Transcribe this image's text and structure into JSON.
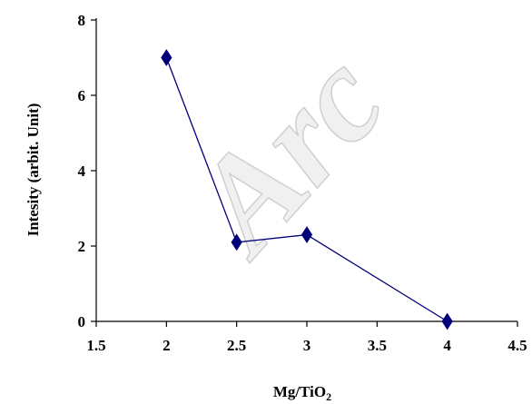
{
  "watermark": "Arc",
  "chart_data": {
    "type": "line",
    "title": "",
    "xlabel": "Mg/TiO",
    "xlabel_sub": "2",
    "ylabel": "Intesity (arbit. Unit)",
    "xlim": [
      1.5,
      4.5
    ],
    "ylim": [
      0,
      8
    ],
    "xticks": [
      1.5,
      2,
      2.5,
      3,
      3.5,
      4,
      4.5
    ],
    "xtick_labels": [
      "1.5",
      "2",
      "2.5",
      "3",
      "3.5",
      "4",
      "4.5"
    ],
    "yticks": [
      0,
      2,
      4,
      6,
      8
    ],
    "ytick_labels": [
      "0",
      "2",
      "4",
      "6",
      "8"
    ],
    "grid": false,
    "legend": "none",
    "marker": "diamond",
    "color": "#00007a",
    "series": [
      {
        "x": [
          2,
          2.5,
          3,
          4
        ],
        "y": [
          7.0,
          2.1,
          2.3,
          0.0
        ]
      }
    ]
  }
}
